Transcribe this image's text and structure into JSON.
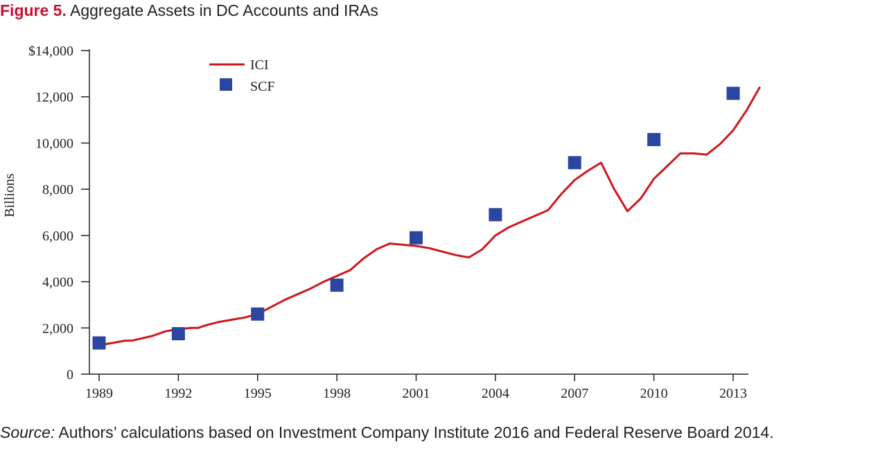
{
  "figure": {
    "number_label": "Figure 5.",
    "title": "Aggregate Assets in DC Accounts and IRAs"
  },
  "source": {
    "label": "Source:",
    "text": " Authors’ calculations based on Investment Company Institute 2016 and Federal Reserve Board 2014."
  },
  "colors": {
    "ici_line": "#d0161b",
    "scf_marker": "#2a46a0",
    "axis": "#231f20",
    "figure_label": "#c8102e"
  },
  "chart_data": {
    "type": "line",
    "title": "Aggregate Assets in DC Accounts and IRAs",
    "xlabel": "",
    "ylabel": "Billions",
    "xlim": [
      1989,
      2014
    ],
    "ylim": [
      0,
      14000
    ],
    "grid": false,
    "legend_position": "top-left",
    "x_ticks": [
      1989,
      1992,
      1995,
      1998,
      2001,
      2004,
      2007,
      2010,
      2013
    ],
    "y_ticks": [
      0,
      2000,
      4000,
      6000,
      8000,
      10000,
      12000,
      14000
    ],
    "y_tick_labels": [
      "0",
      "2,000",
      "4,000",
      "6,000",
      "8,000",
      "10,000",
      "12,000",
      "$14,000"
    ],
    "series": [
      {
        "name": "ICI",
        "style": "line",
        "x": [
          1989,
          1989.5,
          1990,
          1990.25,
          1991,
          1991.5,
          1992,
          1992.5,
          1992.75,
          1993,
          1993.5,
          1994,
          1994.5,
          1995,
          1995.5,
          1996,
          1996.5,
          1997,
          1997.5,
          1998,
          1998.5,
          1999,
          1999.5,
          2000,
          2000.5,
          2001,
          2001.5,
          2002,
          2002.5,
          2003,
          2003.5,
          2004,
          2004.5,
          2005,
          2005.5,
          2006,
          2006.5,
          2007,
          2007.5,
          2008,
          2008.5,
          2009,
          2009.5,
          2010,
          2010.5,
          2011,
          2011.5,
          2012,
          2012.5,
          2013,
          2013.5,
          2014
        ],
        "y": [
          1250,
          1350,
          1450,
          1450,
          1650,
          1850,
          1950,
          2000,
          2000,
          2100,
          2250,
          2350,
          2450,
          2600,
          2900,
          3200,
          3450,
          3700,
          4000,
          4250,
          4500,
          5000,
          5400,
          5650,
          5600,
          5550,
          5450,
          5300,
          5150,
          5050,
          5400,
          6000,
          6350,
          6600,
          6850,
          7100,
          7800,
          8400,
          8800,
          9150,
          8000,
          7050,
          7600,
          8450,
          9000,
          9550,
          9550,
          9500,
          9950,
          10550,
          11400,
          12400
        ]
      },
      {
        "name": "SCF",
        "style": "marker",
        "x": [
          1989,
          1992,
          1995,
          1998,
          2001,
          2004,
          2007,
          2010,
          2013
        ],
        "y": [
          1350,
          1750,
          2600,
          3850,
          5900,
          6900,
          9150,
          10150,
          12150
        ]
      }
    ]
  }
}
